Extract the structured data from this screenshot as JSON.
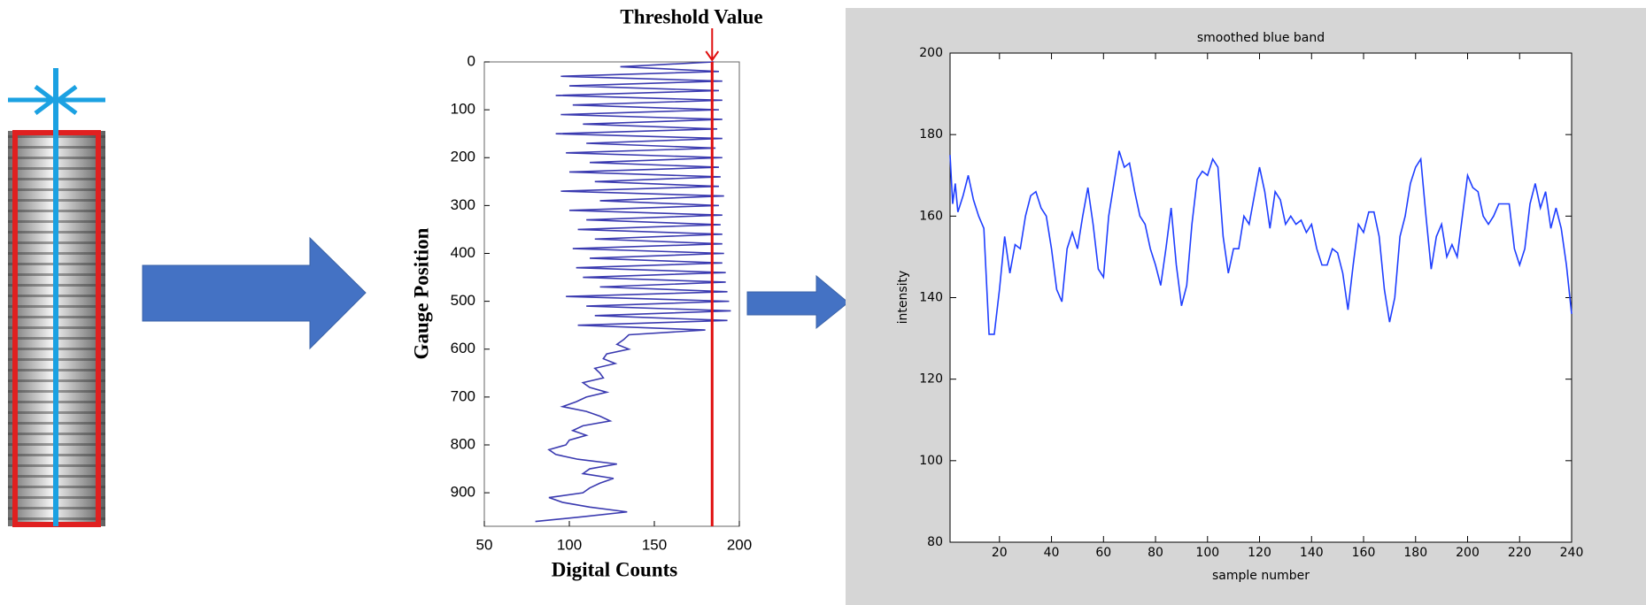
{
  "chart_data": [
    {
      "type": "line",
      "x_label": "Digital Counts",
      "y_label": "Gauge Position",
      "annotation": "Threshold Value",
      "threshold": 184,
      "threshold_color": "#e01010",
      "invert_y": true,
      "xlim": [
        50,
        200
      ],
      "xticks": [
        50,
        100,
        150,
        200
      ],
      "ylim": [
        0,
        970
      ],
      "yticks": [
        0,
        100,
        200,
        300,
        400,
        500,
        600,
        700,
        800,
        900
      ],
      "x": [
        185,
        130,
        188,
        95,
        190,
        100,
        188,
        92,
        190,
        102,
        188,
        95,
        190,
        108,
        187,
        92,
        190,
        110,
        186,
        98,
        190,
        112,
        188,
        100,
        189,
        115,
        188,
        95,
        191,
        118,
        188,
        100,
        190,
        110,
        189,
        105,
        190,
        115,
        190,
        102,
        191,
        112,
        190,
        104,
        192,
        108,
        192,
        118,
        193,
        98,
        194,
        110,
        195,
        115,
        193,
        105,
        180,
        135,
        132,
        128,
        135,
        122,
        120,
        127,
        115,
        118,
        120,
        108,
        112,
        122,
        110,
        104,
        96,
        110,
        118,
        124,
        108,
        102,
        110,
        100,
        98,
        88,
        92,
        105,
        128,
        112,
        108,
        126,
        118,
        112,
        108,
        88,
        96,
        112,
        134,
        108,
        80
      ],
      "series": [
        {
          "color": "#3a3ab0",
          "values": [
            0,
            10,
            20,
            30,
            40,
            50,
            60,
            70,
            80,
            90,
            100,
            110,
            120,
            130,
            140,
            150,
            160,
            170,
            180,
            190,
            200,
            210,
            220,
            230,
            240,
            250,
            260,
            270,
            280,
            290,
            300,
            310,
            320,
            330,
            340,
            350,
            360,
            370,
            380,
            390,
            400,
            410,
            420,
            430,
            440,
            450,
            460,
            470,
            480,
            490,
            500,
            510,
            520,
            530,
            540,
            550,
            560,
            570,
            580,
            590,
            600,
            610,
            620,
            630,
            640,
            650,
            660,
            670,
            680,
            690,
            700,
            710,
            720,
            730,
            740,
            750,
            760,
            770,
            780,
            790,
            800,
            810,
            820,
            830,
            840,
            850,
            860,
            870,
            880,
            890,
            900,
            910,
            920,
            930,
            940,
            950,
            960
          ]
        }
      ]
    },
    {
      "type": "line",
      "title": "smoothed blue band",
      "x_label": "sample number",
      "y_label": "intensity",
      "xlim": [
        1,
        240
      ],
      "xticks": [
        20,
        40,
        60,
        80,
        100,
        120,
        140,
        160,
        180,
        200,
        220,
        240
      ],
      "ylim": [
        80,
        200
      ],
      "yticks": [
        80,
        100,
        120,
        140,
        160,
        180,
        200
      ],
      "x": [
        1,
        2,
        3,
        4,
        6,
        8,
        10,
        12,
        14,
        16,
        18,
        20,
        22,
        24,
        26,
        28,
        30,
        32,
        34,
        36,
        38,
        40,
        42,
        44,
        46,
        48,
        50,
        52,
        54,
        56,
        58,
        60,
        62,
        64,
        66,
        68,
        70,
        72,
        74,
        76,
        78,
        80,
        82,
        84,
        86,
        88,
        90,
        92,
        94,
        96,
        98,
        100,
        102,
        104,
        106,
        108,
        110,
        112,
        114,
        116,
        118,
        120,
        122,
        124,
        126,
        128,
        130,
        132,
        134,
        136,
        138,
        140,
        142,
        144,
        146,
        148,
        150,
        152,
        154,
        156,
        158,
        160,
        162,
        164,
        166,
        168,
        170,
        172,
        174,
        176,
        178,
        180,
        182,
        184,
        186,
        188,
        190,
        192,
        194,
        196,
        198,
        200,
        202,
        204,
        206,
        208,
        210,
        212,
        214,
        216,
        218,
        220,
        222,
        224,
        226,
        228,
        230,
        232,
        234,
        236,
        238,
        240
      ],
      "series": [
        {
          "color": "#1f3fff",
          "values": [
            175,
            163,
            168,
            161,
            165,
            170,
            164,
            160,
            157,
            131,
            131,
            142,
            155,
            146,
            153,
            152,
            160,
            165,
            166,
            162,
            160,
            152,
            142,
            139,
            152,
            156,
            152,
            160,
            167,
            158,
            147,
            145,
            160,
            168,
            176,
            172,
            173,
            166,
            160,
            158,
            152,
            148,
            143,
            152,
            162,
            148,
            138,
            143,
            158,
            169,
            171,
            170,
            174,
            172,
            155,
            146,
            152,
            152,
            160,
            158,
            165,
            172,
            166,
            157,
            166,
            164,
            158,
            160,
            158,
            159,
            156,
            158,
            152,
            148,
            148,
            152,
            151,
            146,
            137,
            148,
            158,
            156,
            161,
            161,
            155,
            142,
            134,
            140,
            155,
            160,
            168,
            172,
            174,
            160,
            147,
            155,
            158,
            150,
            153,
            150,
            160,
            170,
            167,
            166,
            160,
            158,
            160,
            163,
            163,
            163,
            152,
            148,
            152,
            163,
            168,
            162,
            166,
            157,
            162,
            157,
            148,
            136
          ]
        }
      ]
    }
  ]
}
